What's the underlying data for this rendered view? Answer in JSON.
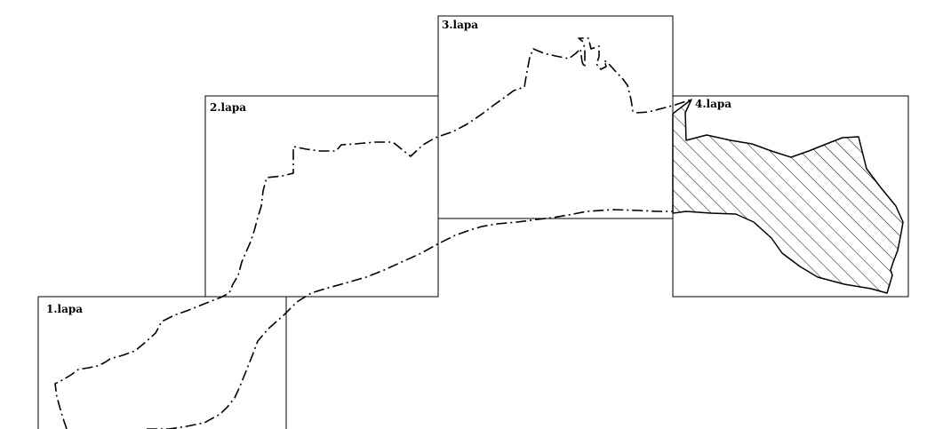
{
  "map": {
    "sheets": [
      {
        "id": "sheet-1",
        "label": "1.lapa"
      },
      {
        "id": "sheet-2",
        "label": "2.lapa"
      },
      {
        "id": "sheet-3",
        "label": "3.lapa"
      },
      {
        "id": "sheet-4",
        "label": "4.lapa"
      }
    ],
    "colors": {
      "line": "#000000",
      "background": "#ffffff"
    }
  }
}
